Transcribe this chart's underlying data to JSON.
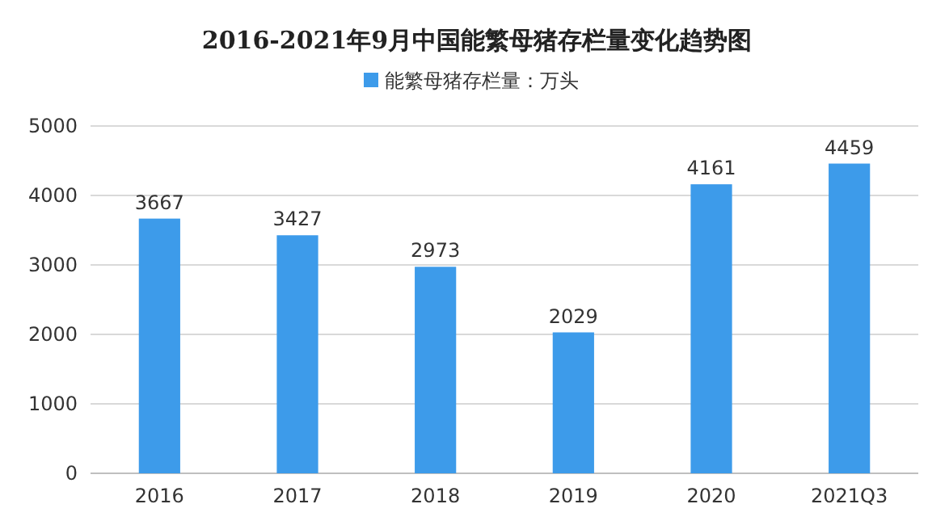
{
  "chart_data": {
    "type": "bar",
    "title": "2016-2021年9月中国能繁母猪存栏量变化趋势图",
    "categories": [
      "2016",
      "2017",
      "2018",
      "2019",
      "2020",
      "2021Q3"
    ],
    "series": [
      {
        "name": "能繁母猪存栏量：万头",
        "color": "#3d9bea",
        "values": [
          3667,
          3427,
          2973,
          2029,
          4161,
          4459
        ]
      }
    ],
    "ylim": [
      0,
      5000
    ],
    "yticks": [
      0,
      1000,
      2000,
      3000,
      4000,
      5000
    ],
    "grid": "y",
    "legend": "top",
    "data_labels": true
  }
}
